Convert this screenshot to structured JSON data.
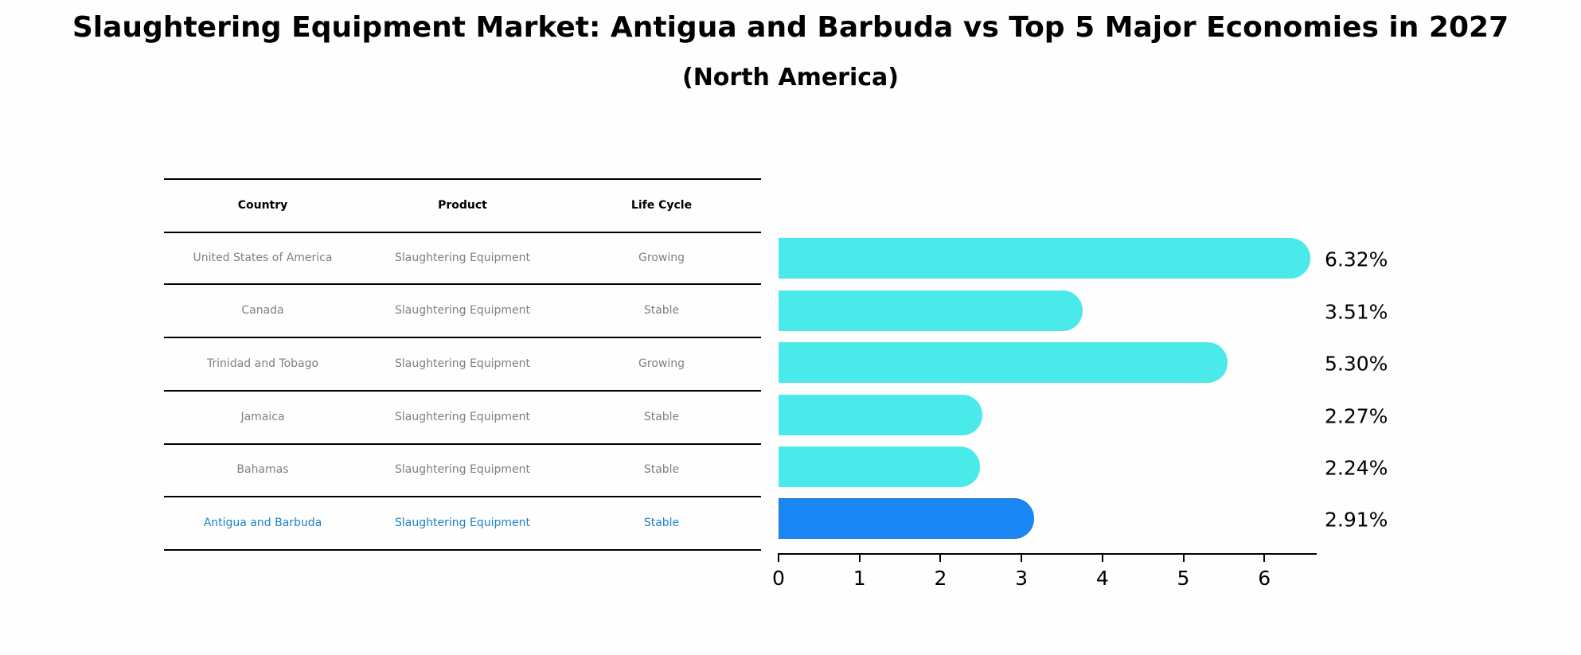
{
  "title": "Slaughtering Equipment Market: Antigua and Barbuda vs Top 5 Major Economies in 2027",
  "subtitle": "(North America)",
  "table": {
    "headers": [
      "Country",
      "Product",
      "Life Cycle"
    ],
    "rows": [
      {
        "country": "United States of America",
        "product": "Slaughtering Equipment",
        "life_cycle": "Growing",
        "highlight": false
      },
      {
        "country": "Canada",
        "product": "Slaughtering Equipment",
        "life_cycle": "Stable",
        "highlight": false
      },
      {
        "country": "Trinidad and Tobago",
        "product": "Slaughtering Equipment",
        "life_cycle": "Growing",
        "highlight": false
      },
      {
        "country": "Jamaica",
        "product": "Slaughtering Equipment",
        "life_cycle": "Stable",
        "highlight": false
      },
      {
        "country": "Bahamas",
        "product": "Slaughtering Equipment",
        "life_cycle": "Stable",
        "highlight": false
      },
      {
        "country": "Antigua and Barbuda",
        "product": "Slaughtering Equipment",
        "life_cycle": "Stable",
        "highlight": true
      }
    ]
  },
  "colors": {
    "bar": "#4aeaea",
    "highlight_bar": "#1a86f3",
    "highlight_text": "#1f83c8",
    "body_text": "#808080"
  },
  "chart_data": {
    "type": "bar",
    "orientation": "horizontal",
    "title": "Slaughtering Equipment Market: Antigua and Barbuda vs Top 5 Major Economies in 2027",
    "subtitle": "(North America)",
    "categories": [
      "United States of America",
      "Canada",
      "Trinidad and Tobago",
      "Jamaica",
      "Bahamas",
      "Antigua and Barbuda"
    ],
    "values": [
      6.32,
      3.51,
      5.3,
      2.27,
      2.24,
      2.91
    ],
    "value_labels": [
      "6.32%",
      "3.51%",
      "5.30%",
      "2.27%",
      "2.24%",
      "2.91%"
    ],
    "highlighted_category": "Antigua and Barbuda",
    "xlabel": "",
    "ylabel": "",
    "xlim": [
      0,
      6.6
    ],
    "xticks": [
      "0",
      "1",
      "2",
      "3",
      "4",
      "5",
      "6"
    ],
    "grid": false,
    "legend": null
  }
}
